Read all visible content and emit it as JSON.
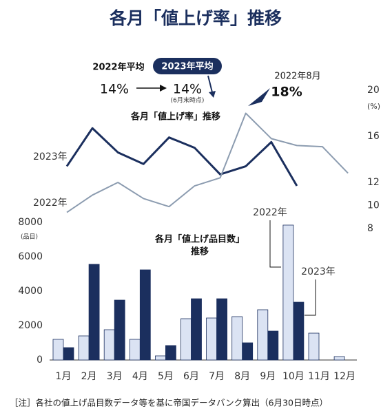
{
  "title": "各月「値上げ率」推移",
  "annotations": {
    "avg_2022_label": "2022年平均",
    "avg_2022_value": "14%",
    "avg_2023_label": "2023年平均",
    "avg_2023_value": "14%",
    "avg_2023_note": "(6月末時点)",
    "peak_label": "2022年8月",
    "peak_value": "18%"
  },
  "note": "［注］各社の値上げ品目数データ等を基に帝国データバンク算出（6月30日時点）",
  "chart_data": [
    {
      "type": "line",
      "title": "各月「値上げ率」推移",
      "y_unit": "(%)",
      "ylim": [
        8,
        20
      ],
      "yticks": [
        8,
        10,
        12,
        16,
        20
      ],
      "series": [
        {
          "name": "2023年",
          "color": "#1b2f5e",
          "values": [
            13.4,
            16.7,
            14.6,
            13.6,
            15.9,
            15.0,
            12.7,
            13.4,
            15.5,
            11.7,
            null,
            null
          ]
        },
        {
          "name": "2022年",
          "color": "#8c9cb0",
          "values": [
            9.4,
            10.9,
            12.0,
            10.6,
            9.9,
            11.7,
            12.4,
            18.0,
            15.8,
            15.2,
            15.1,
            12.8
          ]
        }
      ]
    },
    {
      "type": "bar",
      "title": [
        "各月「値上げ品目数」",
        "推移"
      ],
      "y_unit": "(品目)",
      "categories": [
        "1月",
        "2月",
        "3月",
        "4月",
        "5月",
        "6月",
        "7月",
        "8月",
        "9月",
        "10月",
        "11月",
        "12月"
      ],
      "ylim": [
        0,
        8000
      ],
      "yticks": [
        0,
        2000,
        4000,
        6000,
        8000
      ],
      "series": [
        {
          "name": "2022年",
          "color": "#dbe3f3",
          "values": [
            1200,
            1400,
            1760,
            1200,
            240,
            2400,
            2440,
            2520,
            2920,
            7840,
            1560,
            200
          ]
        },
        {
          "name": "2023年",
          "color": "#1b2f5e",
          "values": [
            720,
            5560,
            3480,
            5240,
            840,
            3560,
            3560,
            1000,
            1680,
            3360,
            null,
            null
          ]
        }
      ]
    }
  ]
}
